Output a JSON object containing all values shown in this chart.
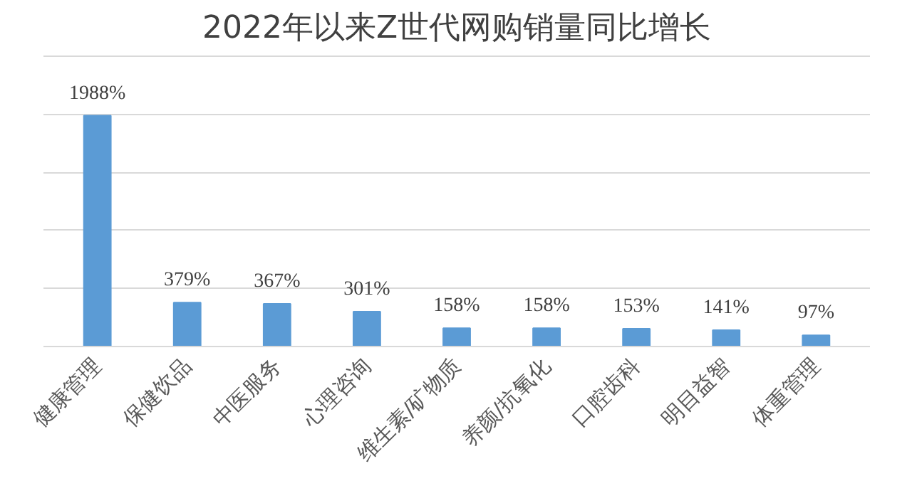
{
  "chart_data": {
    "type": "bar",
    "title": "2022年以来Z世代网购销量同比增长",
    "categories": [
      "健康管理",
      "保健饮品",
      "中医服务",
      "心理咨询",
      "维生素/矿物质",
      "养颜/抗氧化",
      "口腔齿科",
      "明目益智",
      "体重管理"
    ],
    "values": [
      1988,
      379,
      367,
      301,
      158,
      158,
      153,
      141,
      97
    ],
    "color": "#5b9bd5",
    "value_labels": [
      "1988%",
      "379%",
      "367%",
      "301%",
      "158%",
      "158%",
      "153%",
      "141%",
      "97%"
    ],
    "yticks": [
      {
        "value": 0,
        "label": null
      },
      {
        "value": 500,
        "label": null
      },
      {
        "value": 1000,
        "label": null
      },
      {
        "value": 1500,
        "label": null
      },
      {
        "value": 2000,
        "label": null
      },
      {
        "value": 2500,
        "label": null
      }
    ],
    "grid": "y",
    "tick_labels": "x"
  }
}
